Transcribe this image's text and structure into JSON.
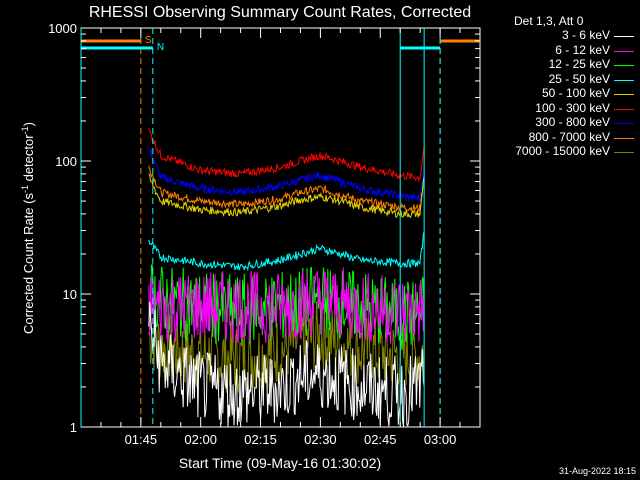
{
  "chart_data": {
    "type": "line",
    "title": "RHESSI Observing Summary Count Rates, Corrected",
    "xlabel": "Start Time (09-May-16 01:30:02)",
    "ylabel_parts": [
      "Corrected Count Rate (s",
      "-1",
      " detector",
      "-1",
      ")"
    ],
    "ylabel": "Corrected Count Rate (s^-1 detector^-1)",
    "yscale": "log",
    "ylim": [
      1,
      1000
    ],
    "xlim": [
      "01:30",
      "03:10"
    ],
    "xtick_labels": [
      "01:45",
      "02:00",
      "02:15",
      "02:30",
      "02:45",
      "03:00"
    ],
    "ytick_labels": [
      "1",
      "10",
      "100",
      "1000"
    ],
    "legend_title": "Det 1,3, Att 0",
    "legend_position": "top-right",
    "flags": {
      "S": {
        "label": "S",
        "color": "#ff8000",
        "intervals": [
          [
            "01:30",
            "01:45"
          ],
          [
            "03:00",
            "03:10"
          ]
        ],
        "boundaries": [
          "01:45",
          "03:00"
        ]
      },
      "N": {
        "label": "N",
        "color": "#00ffff",
        "intervals": [
          [
            "01:30",
            "01:48"
          ],
          [
            "02:50",
            "03:00"
          ]
        ],
        "boundaries": [
          "01:48",
          "03:00"
        ]
      }
    },
    "night_markers": [
      "01:30",
      "02:50",
      "02:56"
    ],
    "x": [
      "01:47",
      "01:50",
      "02:00",
      "02:10",
      "02:20",
      "02:25",
      "02:30",
      "02:35",
      "02:40",
      "02:50",
      "02:55",
      "02:56"
    ],
    "series": [
      {
        "name": "3 - 6 keV",
        "color": "#ffffff",
        "values": [
          6,
          3,
          2,
          1.8,
          2,
          2.4,
          2.5,
          2.3,
          2,
          1.8,
          2,
          3
        ]
      },
      {
        "name": "6 - 12 keV",
        "color": "#ff00ff",
        "values": [
          8,
          8,
          8,
          8,
          8,
          8.5,
          9,
          8.5,
          8,
          7.5,
          7.5,
          8
        ]
      },
      {
        "name": "12 - 25 keV",
        "color": "#00ff00",
        "values": [
          10,
          9,
          8,
          7.5,
          8,
          8.5,
          9,
          8.5,
          8,
          7,
          7,
          8
        ]
      },
      {
        "name": "25 - 50 keV",
        "color": "#00ffff",
        "values": [
          25,
          19,
          17,
          16,
          18,
          20,
          22,
          20,
          18,
          17,
          17,
          30
        ]
      },
      {
        "name": "50 - 100 keV",
        "color": "#e6d200",
        "values": [
          75,
          50,
          43,
          41,
          46,
          51,
          54,
          50,
          45,
          40,
          40,
          80
        ]
      },
      {
        "name": "100 - 300 keV",
        "color": "#ff0000",
        "values": [
          170,
          110,
          85,
          80,
          90,
          100,
          110,
          100,
          90,
          78,
          75,
          130
        ]
      },
      {
        "name": "300 - 800 keV",
        "color": "#0000ff",
        "values": [
          125,
          75,
          62,
          58,
          65,
          72,
          78,
          70,
          62,
          55,
          52,
          95
        ]
      },
      {
        "name": "800 - 7000 keV",
        "color": "#ff8000",
        "values": [
          90,
          58,
          50,
          47,
          52,
          58,
          62,
          56,
          50,
          45,
          44,
          80
        ]
      },
      {
        "name": "7000 - 15000 keV",
        "color": "#808000",
        "values": [
          5,
          4,
          3.5,
          3.3,
          3.8,
          4.4,
          4.8,
          4.3,
          3.8,
          3.5,
          3.5,
          4
        ]
      }
    ]
  },
  "footer": "31-Aug-2022 18:15"
}
